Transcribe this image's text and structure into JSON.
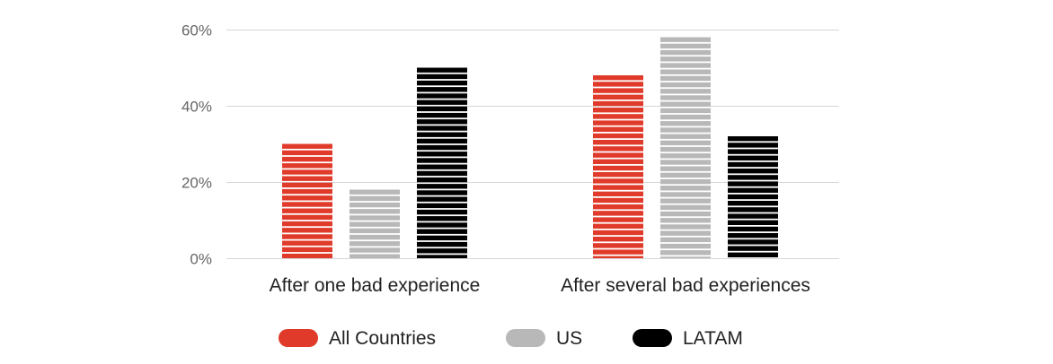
{
  "chart_data": {
    "type": "bar",
    "categories": [
      "After one bad experience",
      "After several bad experiences"
    ],
    "series": [
      {
        "name": "All Countries",
        "color": "#e03a2a",
        "values": [
          30,
          48
        ]
      },
      {
        "name": "US",
        "color": "#b8b8b8",
        "values": [
          18,
          58
        ]
      },
      {
        "name": "LATAM",
        "color": "#000000",
        "values": [
          50,
          32
        ]
      }
    ],
    "yticks": [
      0,
      20,
      40,
      60
    ],
    "ytick_labels": [
      "0%",
      "20%",
      "40%",
      "60%"
    ],
    "ylim": [
      0,
      60
    ],
    "grid": true,
    "legend_position": "bottom",
    "bar_pattern": "horizontal-stripes"
  }
}
